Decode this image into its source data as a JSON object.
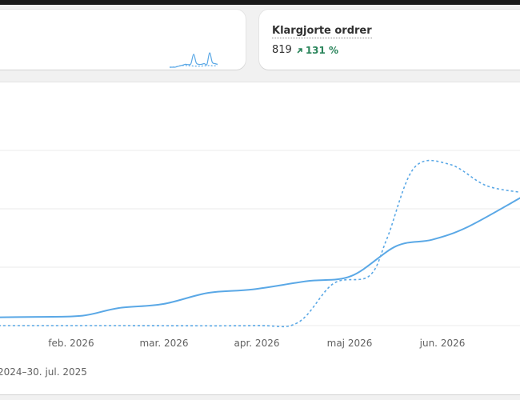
{
  "metrics": [
    {
      "title": "",
      "value": "",
      "delta": "",
      "sparkline": {
        "current": [
          0,
          0,
          0,
          0.05,
          0.1,
          0.15,
          0.2,
          0.18,
          0.25,
          0.9,
          0.3,
          0.2,
          0.2,
          0.25,
          0.2,
          1.0,
          0.35,
          0.25,
          0.2
        ],
        "previous": [
          0,
          0,
          0.02,
          0.05,
          0.1,
          0.12,
          0.12,
          0.1,
          0.1,
          0.08,
          0.08,
          0.08,
          0.08,
          0.1,
          0.1,
          0.12,
          0.1,
          0.1,
          0.1
        ]
      }
    },
    {
      "title": "Klargjorte ordrer",
      "value": "819",
      "delta": "131 %",
      "sparkline": null
    }
  ],
  "colors": {
    "accent": "#5aa8e6",
    "positive": "#29845a",
    "gridline": "#ebebeb"
  },
  "chart_data": {
    "type": "line",
    "x_tick_labels": [
      "feb. 2026",
      "mar. 2026",
      "apr. 2026",
      "maj 2026",
      "jun. 2026"
    ],
    "grid": true,
    "series": [
      {
        "style": "solid",
        "points": [
          [
            0,
            0.14
          ],
          [
            0.12,
            0.15
          ],
          [
            0.22,
            0.17
          ],
          [
            0.3,
            0.3
          ],
          [
            0.4,
            0.37
          ],
          [
            0.5,
            0.56
          ],
          [
            0.6,
            0.62
          ],
          [
            0.72,
            0.76
          ],
          [
            0.82,
            0.85
          ],
          [
            0.92,
            1.36
          ],
          [
            1.0,
            1.47
          ],
          [
            1.08,
            1.69
          ],
          [
            1.2,
            2.2
          ]
        ]
      },
      {
        "style": "dashed",
        "points": [
          [
            0,
            0.0
          ],
          [
            0.3,
            0.0
          ],
          [
            0.6,
            0.0
          ],
          [
            0.7,
            0.05
          ],
          [
            0.78,
            0.72
          ],
          [
            0.86,
            0.85
          ],
          [
            0.9,
            1.5
          ],
          [
            0.96,
            2.7
          ],
          [
            1.04,
            2.76
          ],
          [
            1.12,
            2.4
          ],
          [
            1.2,
            2.28
          ]
        ]
      }
    ],
    "date_range_label": "2024–30. jul. 2025"
  }
}
